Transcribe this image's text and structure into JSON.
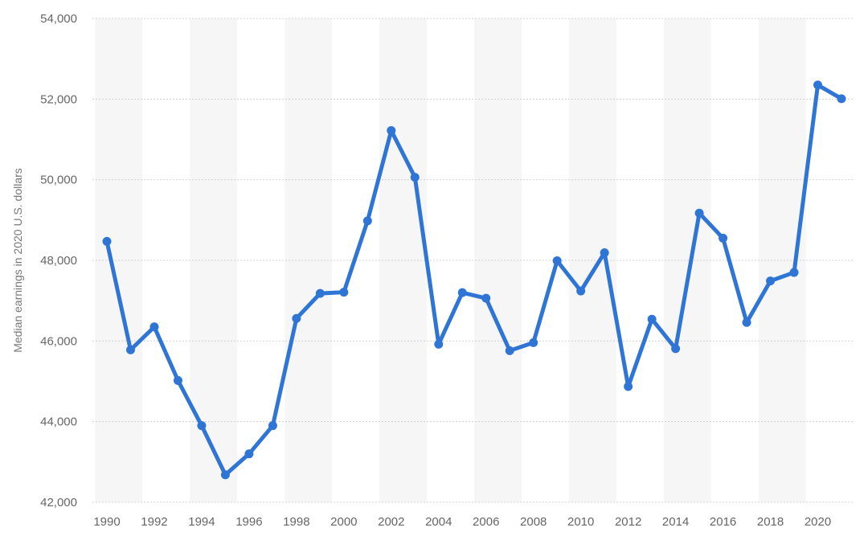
{
  "chart_data": {
    "type": "line",
    "title": "",
    "xlabel": "",
    "ylabel": "Median earnings in 2020 U.S. dollars",
    "x": [
      1990,
      1991,
      1992,
      1993,
      1994,
      1995,
      1996,
      1997,
      1998,
      1999,
      2000,
      2001,
      2002,
      2003,
      2004,
      2005,
      2006,
      2007,
      2008,
      2009,
      2010,
      2011,
      2012,
      2013,
      2014,
      2015,
      2016,
      2017,
      2018,
      2019,
      2020,
      2021
    ],
    "series": [
      {
        "values": [
          48470,
          45780,
          46350,
          45020,
          43900,
          42680,
          43200,
          43900,
          46560,
          47180,
          47210,
          48980,
          51220,
          50060,
          45920,
          47200,
          47060,
          45760,
          45960,
          47990,
          47240,
          48190,
          44870,
          46540,
          45810,
          49170,
          48550,
          46460,
          47490,
          47700,
          52350,
          52010
        ]
      }
    ],
    "xlim": [
      1990,
      2021
    ],
    "ylim": [
      42000,
      54000
    ],
    "x_ticks": [
      "1990",
      "1992",
      "1994",
      "1996",
      "1998",
      "2000",
      "2002",
      "2004",
      "2006",
      "2008",
      "2010",
      "2012",
      "2014",
      "2016",
      "2018",
      "2020"
    ],
    "y_ticks": [
      "42,000",
      "44,000",
      "46,000",
      "48,000",
      "50,000",
      "52,000",
      "54,000"
    ],
    "grid": true,
    "line_color": "#2f75d6",
    "band_color": "#f6f6f6",
    "grid_color": "#d0d0d0"
  }
}
